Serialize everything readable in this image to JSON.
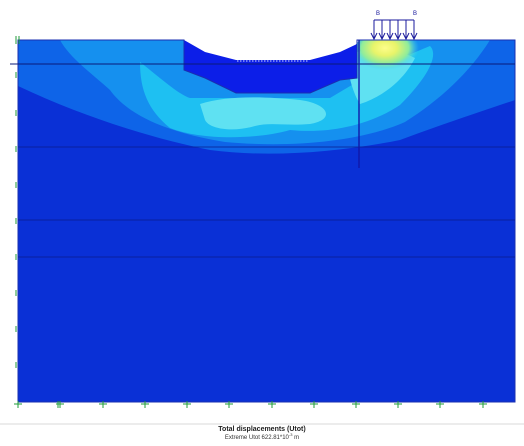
{
  "load": {
    "left_label": "B",
    "right_label": "B"
  },
  "caption": {
    "title": "Total displacements (Utot)",
    "extreme_prefix": "Extreme Utot 622.81*10",
    "extreme_exponent": "-3",
    "extreme_unit": "m"
  },
  "colors": {
    "soil_base": "#0a30d6",
    "contour_mid": "#0e64e8",
    "contour_light": "#1590ef",
    "contour_cyan": "#1ec0f2",
    "contour_lightcyan": "#5fe1f2",
    "contour_yellow": "#f1f56d",
    "contour_green": "#a8f27c",
    "excavation_fill": "#0c1ee8",
    "wall_line": "#1018a8",
    "load_arrow": "#1a1a9c",
    "fixity_mark": "#1f9b3a"
  },
  "icons": {
    "distributed_load": "downward-arrow-array",
    "fixity": "green-cross-markers"
  }
}
